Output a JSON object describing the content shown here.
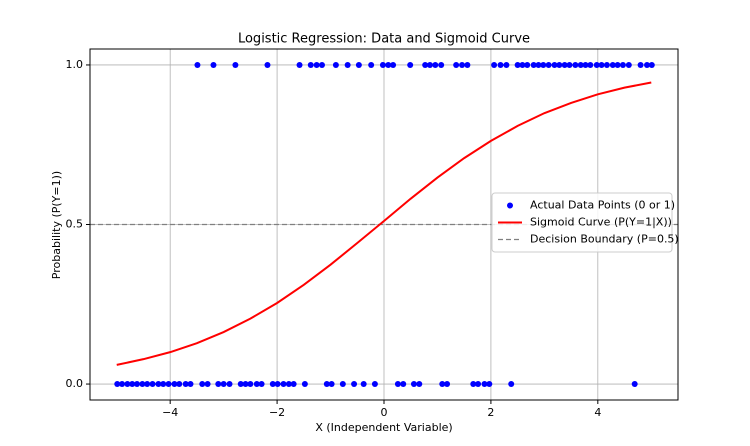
{
  "chart_data": {
    "type": "scatter",
    "title": "Logistic Regression: Data and Sigmoid Curve",
    "x_label": "X (Independent Variable)",
    "y_label": "Probability (P(Y=1))",
    "xlim": [
      -5.5,
      5.5
    ],
    "ylim": [
      -0.05,
      1.05
    ],
    "xticks": [
      {
        "value": -4,
        "label": "−4"
      },
      {
        "value": -2,
        "label": "−2"
      },
      0,
      2,
      4
    ],
    "yticks": [
      {
        "value": 0,
        "label": "0.0"
      },
      {
        "value": 0.5,
        "label": "0.5"
      },
      {
        "value": 1,
        "label": "1.0"
      }
    ],
    "grid": true,
    "legend": "center right",
    "series": [
      {
        "name": "Actual Data Points (0 or 1)",
        "type": "scatter",
        "color": "#0000ff",
        "x": [
          -3.49,
          -3.19,
          -2.78,
          -2.18,
          -1.58,
          -1.37,
          -1.26,
          -1.16,
          -0.9,
          -0.68,
          -0.47,
          -0.24,
          -0.02,
          0.08,
          0.17,
          0.49,
          0.77,
          0.86,
          0.96,
          1.07,
          1.35,
          1.46,
          1.56,
          2.06,
          2.18,
          2.29,
          2.5,
          2.59,
          2.68,
          2.8,
          2.89,
          2.98,
          3.08,
          3.19,
          3.28,
          3.38,
          3.47,
          3.58,
          3.68,
          3.77,
          3.86,
          3.98,
          4.07,
          4.17,
          4.28,
          4.37,
          4.47,
          4.58,
          4.8,
          4.92,
          5.01,
          -4.99,
          -4.9,
          -4.8,
          -4.71,
          -4.62,
          -4.52,
          -4.43,
          -4.33,
          -4.22,
          -4.13,
          -4.03,
          -3.92,
          -3.83,
          -3.71,
          -3.62,
          -3.4,
          -3.3,
          -3.1,
          -3.0,
          -2.89,
          -2.68,
          -2.59,
          -2.5,
          -2.38,
          -2.29,
          -2.08,
          -1.99,
          -1.88,
          -1.78,
          -1.69,
          -1.48,
          -1.07,
          -0.98,
          -0.77,
          -0.56,
          -0.38,
          -0.17,
          0.26,
          0.36,
          0.56,
          0.66,
          1.09,
          1.18,
          1.67,
          1.76,
          1.88,
          1.97,
          2.38,
          4.69
        ],
        "values": [
          1,
          1,
          1,
          1,
          1,
          1,
          1,
          1,
          1,
          1,
          1,
          1,
          1,
          1,
          1,
          1,
          1,
          1,
          1,
          1,
          1,
          1,
          1,
          1,
          1,
          1,
          1,
          1,
          1,
          1,
          1,
          1,
          1,
          1,
          1,
          1,
          1,
          1,
          1,
          1,
          1,
          1,
          1,
          1,
          1,
          1,
          1,
          1,
          1,
          1,
          1,
          0,
          0,
          0,
          0,
          0,
          0,
          0,
          0,
          0,
          0,
          0,
          0,
          0,
          0,
          0,
          0,
          0,
          0,
          0,
          0,
          0,
          0,
          0,
          0,
          0,
          0,
          0,
          0,
          0,
          0,
          0,
          0,
          0,
          0,
          0,
          0,
          0,
          0,
          0,
          0,
          0,
          0,
          0,
          0,
          0,
          0,
          0,
          0,
          0
        ]
      },
      {
        "name": "Sigmoid Curve (P(Y=1|X))",
        "type": "line",
        "color": "#ff0000",
        "x": [
          -5,
          -4.5,
          -4,
          -3.5,
          -3,
          -2.5,
          -2,
          -1.5,
          -1,
          -0.5,
          0,
          0.5,
          1,
          1.5,
          2,
          2.5,
          3,
          3.5,
          4,
          4.5,
          5
        ],
        "values": [
          0.06,
          0.078,
          0.1,
          0.128,
          0.163,
          0.205,
          0.254,
          0.311,
          0.374,
          0.442,
          0.511,
          0.581,
          0.647,
          0.708,
          0.762,
          0.809,
          0.849,
          0.881,
          0.908,
          0.929,
          0.945
        ]
      },
      {
        "name": "Decision Boundary (P=0.5)",
        "type": "hline",
        "color": "#808080",
        "values": [
          0.5
        ]
      }
    ]
  }
}
